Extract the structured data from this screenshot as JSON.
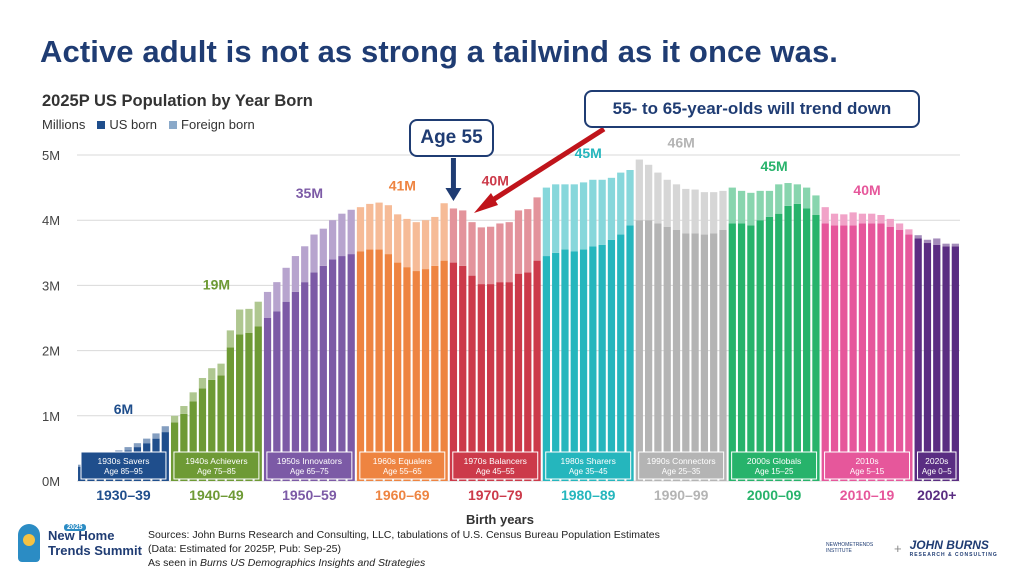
{
  "headline": "Active adult is not as strong a tailwind as it once was.",
  "chart_title": "2025P US Population by Year Born",
  "legend": {
    "units": "Millions",
    "us_born": "US born",
    "foreign_born": "Foreign born"
  },
  "callouts": {
    "age55": "Age 55",
    "trend": "55- to 65-year-olds will trend down"
  },
  "footer": {
    "line1": "Sources: John Burns Research and Consulting, LLC, tabulations of U.S. Census Bureau Population Estimates",
    "line2": "(Data: Estimated for 2025P, Pub: Sep-25)",
    "line3_prefix": "As seen in ",
    "line3_italic": "Burns US Demographics Insights and Strategies"
  },
  "logos": {
    "summit_year": "2025",
    "summit_line1": "New Home",
    "summit_line2": "Trends Summit",
    "nhti": "NEWHOMETRENDS INSTITUTE",
    "plus": "+",
    "jb": "JOHN BURNS",
    "jb_sub": "RESEARCH & CONSULTING"
  },
  "colors": {
    "title": "#1f3c73",
    "arrow_red": "#c0141b",
    "us_born_legend": "#1f4e8c",
    "foreign_born_legend": "#8aa9c9"
  },
  "chart_data": {
    "type": "bar",
    "stacked": true,
    "title": "2025P US Population by Year Born",
    "xlabel": "Birth years",
    "ylabel": "Millions",
    "ylim": [
      0,
      5
    ],
    "yticks": [
      "0M",
      "1M",
      "2M",
      "3M",
      "4M",
      "5M"
    ],
    "grid": true,
    "legend_position": "top-left",
    "x_start": 1930,
    "x_end": 2024,
    "series": [
      {
        "name": "US born",
        "values": [
          0.22,
          0.27,
          0.3,
          0.36,
          0.42,
          0.47,
          0.52,
          0.58,
          0.65,
          0.75,
          0.9,
          1.03,
          1.22,
          1.42,
          1.55,
          1.62,
          2.05,
          2.25,
          2.27,
          2.37,
          2.5,
          2.6,
          2.75,
          2.9,
          3.05,
          3.2,
          3.3,
          3.4,
          3.45,
          3.48,
          3.52,
          3.55,
          3.55,
          3.48,
          3.35,
          3.28,
          3.22,
          3.25,
          3.3,
          3.38,
          3.35,
          3.3,
          3.15,
          3.02,
          3.02,
          3.05,
          3.05,
          3.18,
          3.2,
          3.38,
          3.45,
          3.5,
          3.55,
          3.52,
          3.55,
          3.6,
          3.62,
          3.7,
          3.78,
          3.92,
          4.0,
          4.0,
          3.95,
          3.9,
          3.85,
          3.8,
          3.8,
          3.78,
          3.8,
          3.85,
          3.95,
          3.95,
          3.92,
          4.0,
          4.05,
          4.1,
          4.22,
          4.25,
          4.18,
          4.08,
          3.95,
          3.92,
          3.92,
          3.92,
          3.95,
          3.95,
          3.95,
          3.9,
          3.85,
          3.78,
          3.72,
          3.65,
          3.62,
          3.6,
          3.6
        ],
        "color": "solid"
      },
      {
        "name": "Foreign born",
        "values": [
          0.03,
          0.03,
          0.04,
          0.04,
          0.05,
          0.05,
          0.06,
          0.07,
          0.08,
          0.09,
          0.1,
          0.12,
          0.14,
          0.16,
          0.18,
          0.18,
          0.26,
          0.38,
          0.37,
          0.38,
          0.4,
          0.45,
          0.52,
          0.55,
          0.55,
          0.58,
          0.57,
          0.6,
          0.65,
          0.68,
          0.68,
          0.7,
          0.72,
          0.75,
          0.74,
          0.74,
          0.75,
          0.75,
          0.75,
          0.88,
          0.83,
          0.85,
          0.82,
          0.87,
          0.88,
          0.9,
          0.92,
          0.97,
          0.97,
          0.97,
          1.05,
          1.05,
          1.0,
          1.03,
          1.03,
          1.02,
          1.0,
          0.95,
          0.95,
          0.85,
          0.93,
          0.85,
          0.78,
          0.72,
          0.7,
          0.68,
          0.67,
          0.65,
          0.63,
          0.6,
          0.55,
          0.5,
          0.5,
          0.45,
          0.4,
          0.45,
          0.35,
          0.3,
          0.32,
          0.3,
          0.25,
          0.18,
          0.17,
          0.2,
          0.15,
          0.15,
          0.13,
          0.12,
          0.1,
          0.08,
          0.05,
          0.05,
          0.1,
          0.04,
          0.04
        ],
        "color": "light"
      }
    ],
    "generations": [
      {
        "label": "1930s Savers",
        "age": "Age 85–95",
        "range": "1930–39",
        "total": "6M",
        "start": 1930,
        "end": 1939,
        "color": "#1f4e8c"
      },
      {
        "label": "1940s Achievers",
        "age": "Age 75–85",
        "range": "1940–49",
        "total": "19M",
        "start": 1940,
        "end": 1949,
        "color": "#6e9a35"
      },
      {
        "label": "1950s Innovators",
        "age": "Age 65–75",
        "range": "1950–59",
        "total": "35M",
        "start": 1950,
        "end": 1959,
        "color": "#7c5aa6"
      },
      {
        "label": "1960s Equalers",
        "age": "Age 55–65",
        "range": "1960–69",
        "total": "41M",
        "start": 1960,
        "end": 1969,
        "color": "#ee8441"
      },
      {
        "label": "1970s Balancers",
        "age": "Age 45–55",
        "range": "1970–79",
        "total": "40M",
        "start": 1970,
        "end": 1979,
        "color": "#cc3a4a"
      },
      {
        "label": "1980s Sharers",
        "age": "Age 35–45",
        "range": "1980–89",
        "total": "45M",
        "start": 1980,
        "end": 1989,
        "color": "#25b6bd"
      },
      {
        "label": "1990s Connectors",
        "age": "Age 25–35",
        "range": "1990–99",
        "total": "46M",
        "start": 1990,
        "end": 1999,
        "color": "#b4b4b4"
      },
      {
        "label": "2000s Globals",
        "age": "Age 15–25",
        "range": "2000–09",
        "total": "45M",
        "start": 2000,
        "end": 2009,
        "color": "#27b36b"
      },
      {
        "label": "2010s",
        "age": "Age 5–15",
        "range": "2010–19",
        "total": "40M",
        "start": 2010,
        "end": 2019,
        "color": "#e6579b"
      },
      {
        "label": "2020s",
        "age": "Age 0–5",
        "range": "2020+",
        "total": "",
        "start": 2020,
        "end": 2024,
        "color": "#5a2d82"
      }
    ]
  }
}
